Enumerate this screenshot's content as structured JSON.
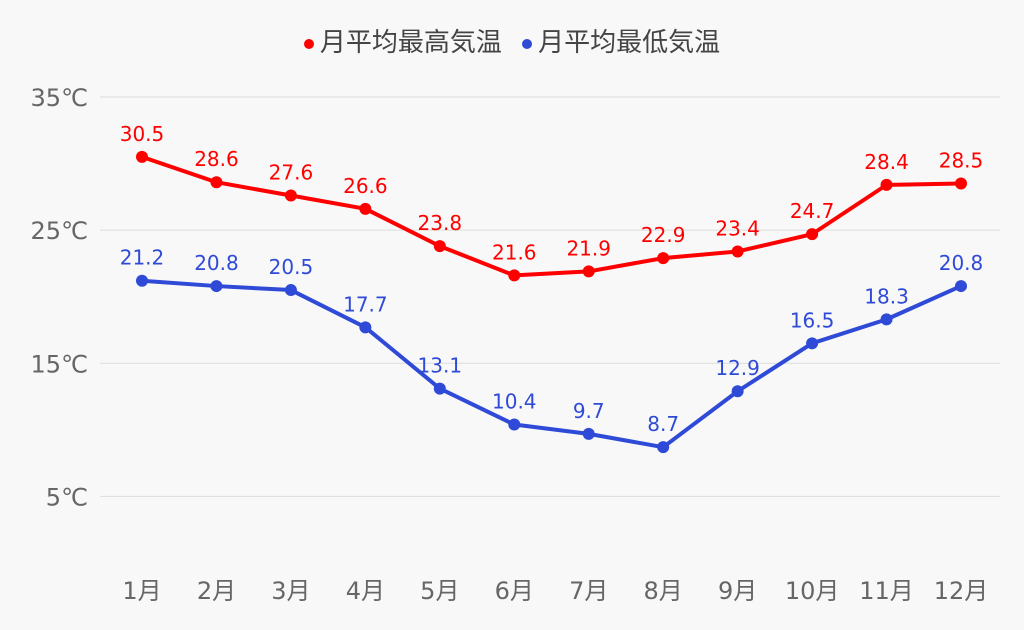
{
  "chart_data": {
    "type": "line",
    "categories": [
      "1月",
      "2月",
      "3月",
      "4月",
      "5月",
      "6月",
      "7月",
      "8月",
      "9月",
      "10月",
      "11月",
      "12月"
    ],
    "series": [
      {
        "name": "月平均最高気温",
        "color": "#ff0000",
        "values": [
          30.5,
          28.6,
          27.6,
          26.6,
          23.8,
          21.6,
          21.9,
          22.9,
          23.4,
          24.7,
          28.4,
          28.5
        ]
      },
      {
        "name": "月平均最低気温",
        "color": "#2f4ad6",
        "values": [
          21.2,
          20.8,
          20.5,
          17.7,
          13.1,
          10.4,
          9.7,
          8.7,
          12.9,
          16.5,
          18.3,
          20.8
        ]
      }
    ],
    "yticks": [
      5,
      15,
      25,
      35
    ],
    "ytick_labels": [
      "5℃",
      "15℃",
      "25℃",
      "35℃"
    ],
    "ylim": [
      0,
      35
    ],
    "grid": true,
    "legend": "top-center",
    "data_labels": true
  }
}
